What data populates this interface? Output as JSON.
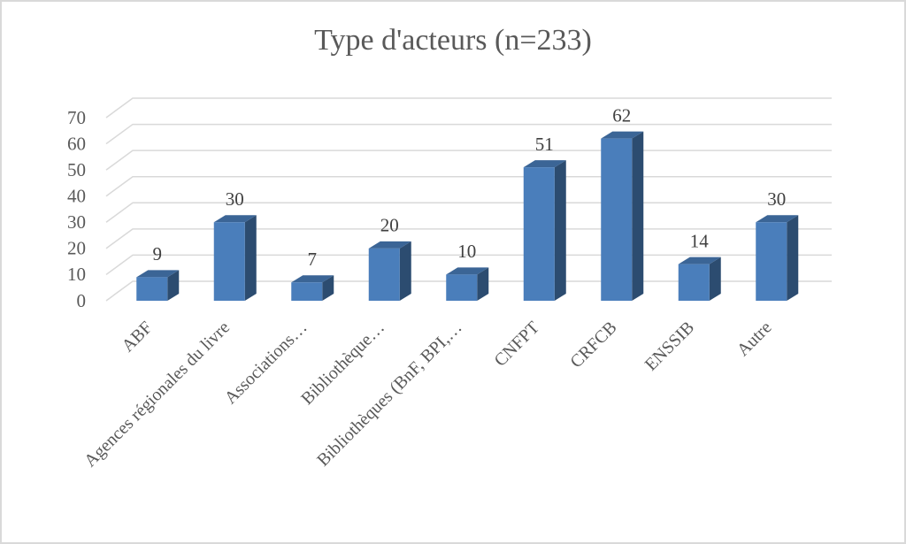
{
  "chart_data": {
    "type": "bar3d",
    "title": "Type  d'acteurs (n=233)",
    "categories": [
      "ABF",
      "Agences régionales du livre",
      "Associations…",
      "Bibliothèque…",
      "Bibliothèques (BnF, BPI,…",
      "CNFPT",
      "CRFCB",
      "ENSSIB",
      "Autre"
    ],
    "values": [
      9,
      30,
      7,
      20,
      10,
      51,
      62,
      14,
      30
    ],
    "color": "#4a7ebb",
    "ylim": [
      0,
      70
    ],
    "yticks": [
      0,
      10,
      20,
      30,
      40,
      50,
      60,
      70
    ],
    "grid": true,
    "data_labels": true
  }
}
